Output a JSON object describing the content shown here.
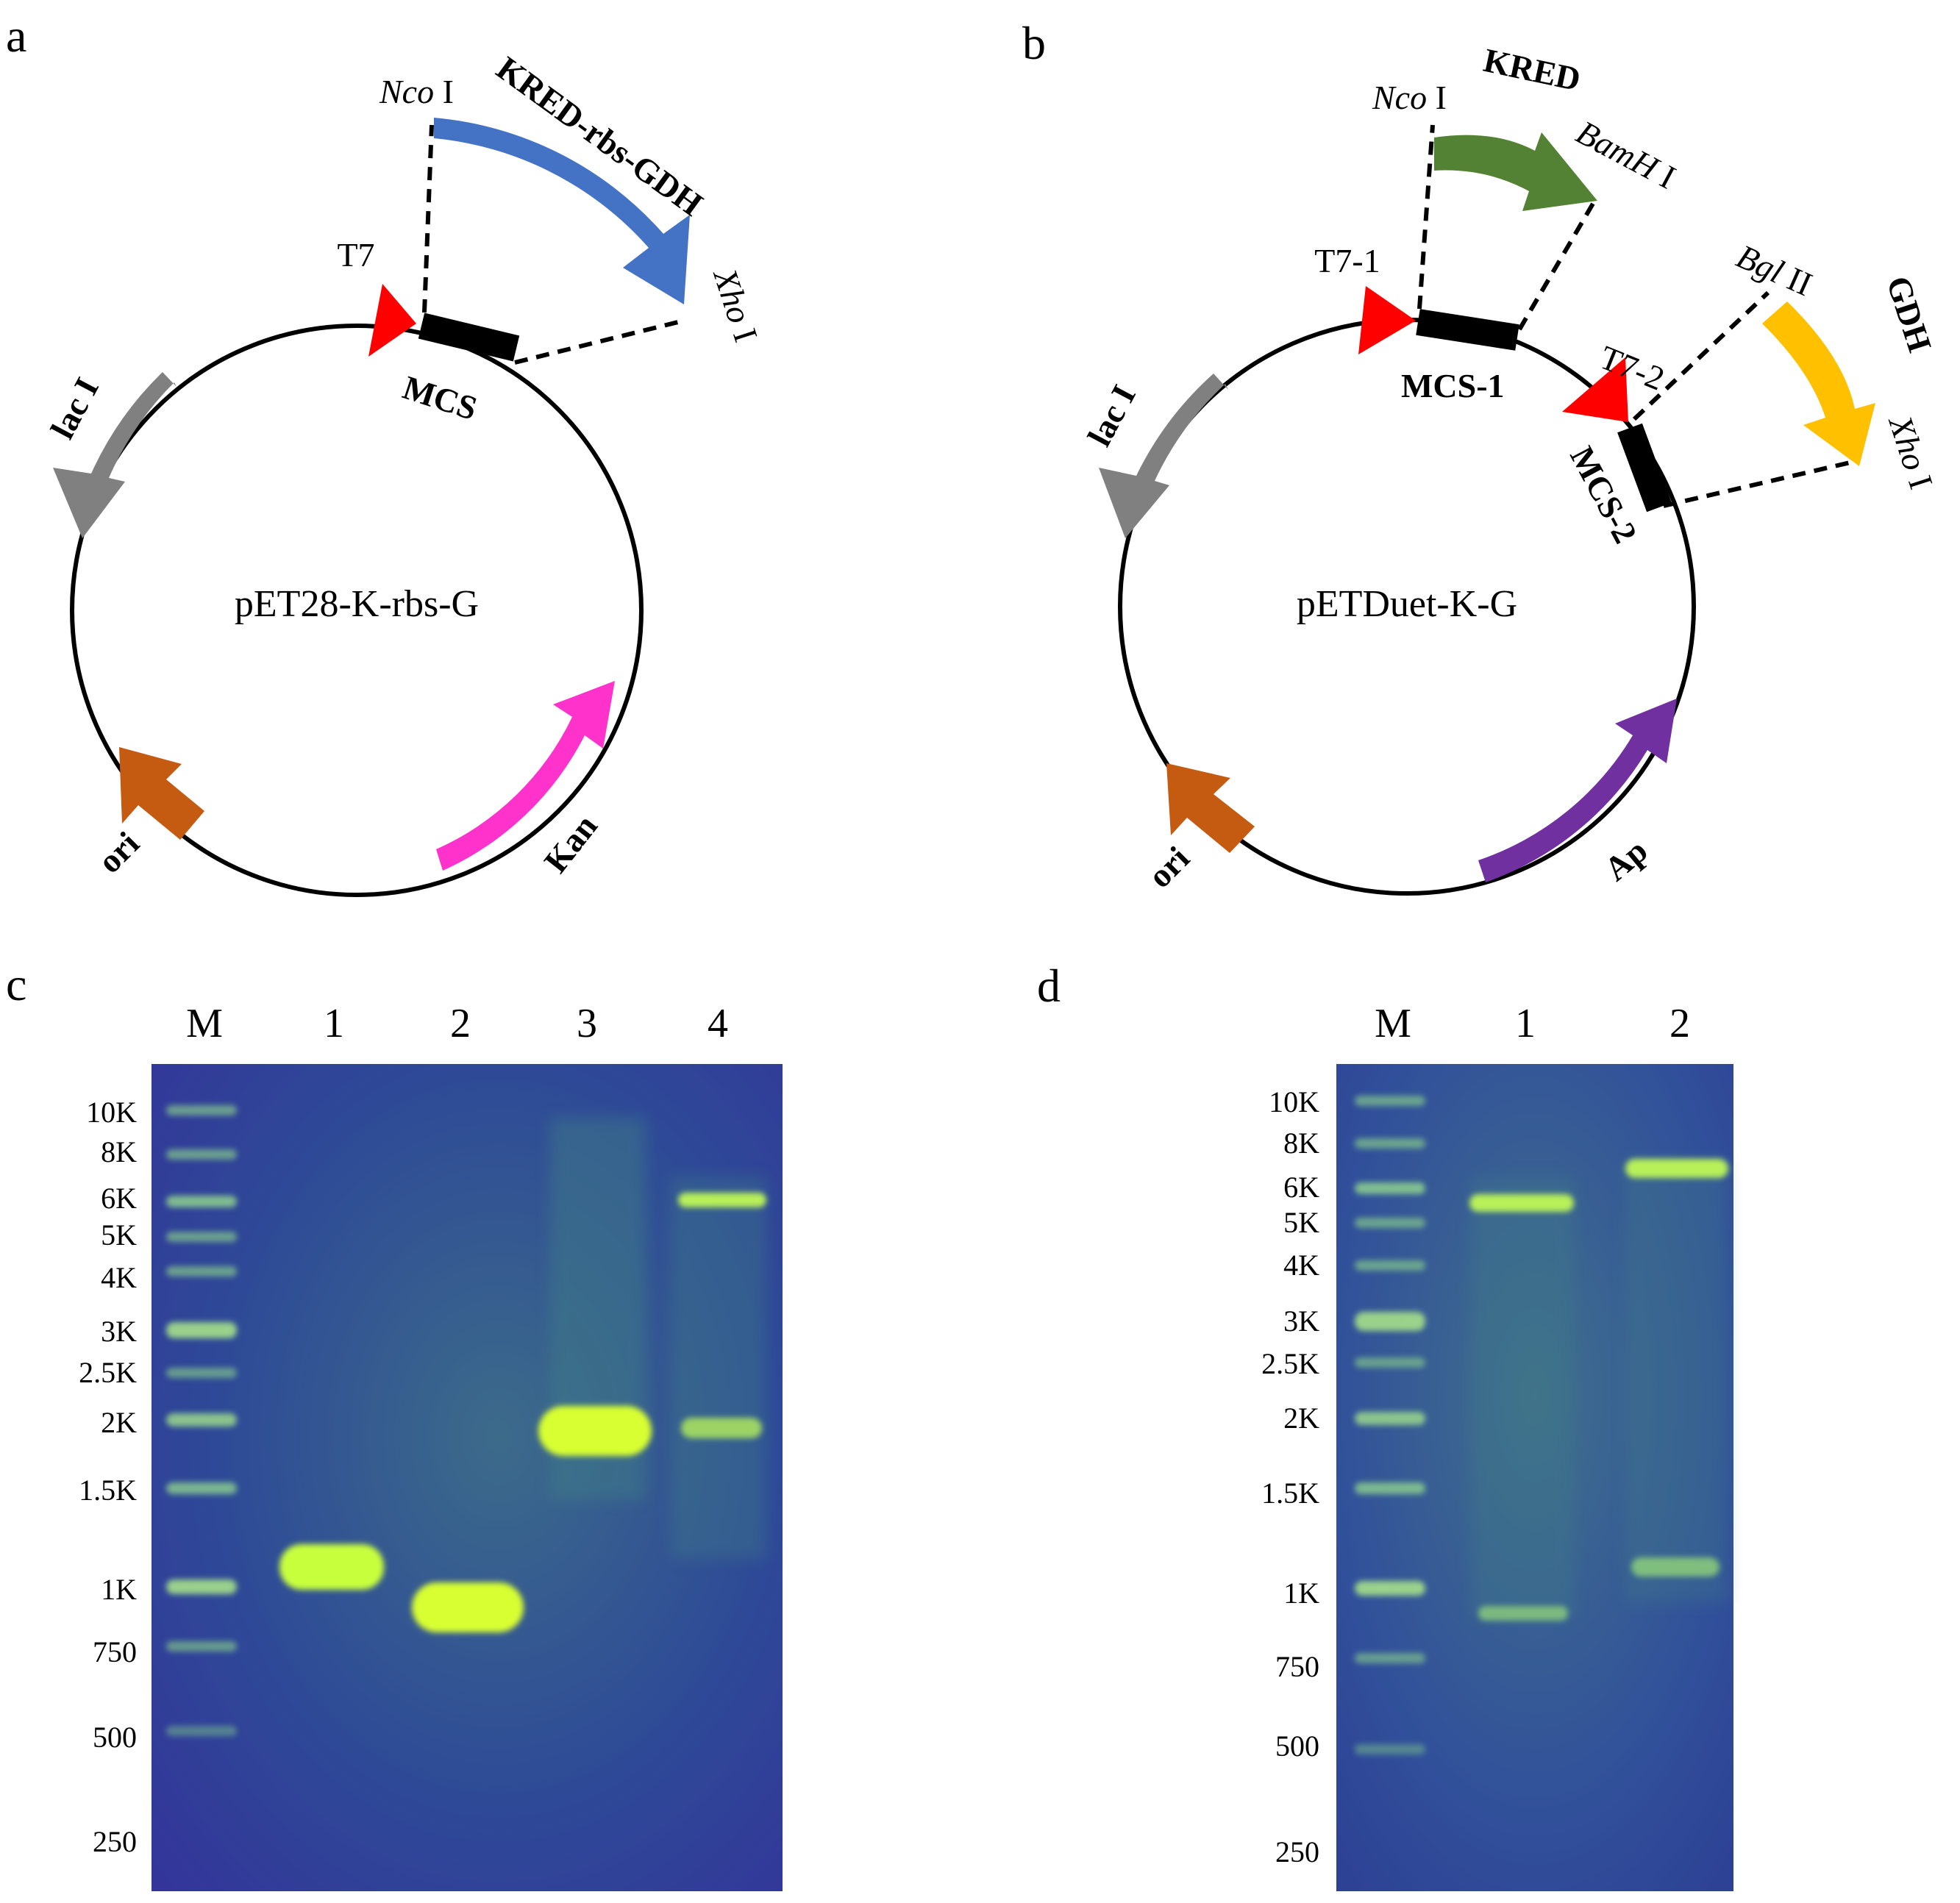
{
  "panels": {
    "a": {
      "letter": "a",
      "plasmid": "pET28-K-rbs-G",
      "promoter": "T7",
      "mcs": "MCS",
      "insert": "KRED-rbs-GDH",
      "site_left_italic": "Nco",
      "site_left_roman": " I",
      "site_right_italic": "Xho",
      "site_right_roman": " I",
      "lac": "lac I",
      "ori": "ori",
      "resistance": "Kan"
    },
    "b": {
      "letter": "b",
      "plasmid": "pETDuet-K-G",
      "promoter1": "T7-1",
      "promoter2": "T7-2",
      "mcs1": "MCS-1",
      "mcs2": "MCS-2",
      "insert1": "KRED",
      "insert2": "GDH",
      "site1_italic": "Nco",
      "site1_roman": " I",
      "site2_italic": "BamH",
      "site2_roman": " I",
      "site3_italic": "Bgl",
      "site3_roman": " II",
      "site4_italic": "Xho",
      "site4_roman": " I",
      "lac": "lac I",
      "ori": "ori",
      "resistance": "Ap"
    },
    "c": {
      "letter": "c",
      "lanes": [
        "M",
        "1",
        "2",
        "3",
        "4"
      ],
      "ladder": [
        "10K",
        "8K",
        "6K",
        "5K",
        "4K",
        "3K",
        "2.5K",
        "2K",
        "1.5K",
        "1K",
        "750",
        "500",
        "250"
      ]
    },
    "d": {
      "letter": "d",
      "lanes": [
        "M",
        "1",
        "2"
      ],
      "ladder": [
        "10K",
        "8K",
        "6K",
        "5K",
        "4K",
        "3K",
        "2.5K",
        "2K",
        "1.5K",
        "1K",
        "750",
        "500",
        "250"
      ]
    }
  },
  "colors": {
    "kred_rbs_gdh": "#4472c4",
    "kred": "#548235",
    "gdh": "#ffc000",
    "kan": "#ff33cc",
    "ap": "#7030a0",
    "lac": "#808080",
    "ori": "#c55a11",
    "t7": "#ff0000",
    "mcs": "#000000",
    "gel_bg": "#2a3f8f",
    "band": "#c8ff3c"
  }
}
